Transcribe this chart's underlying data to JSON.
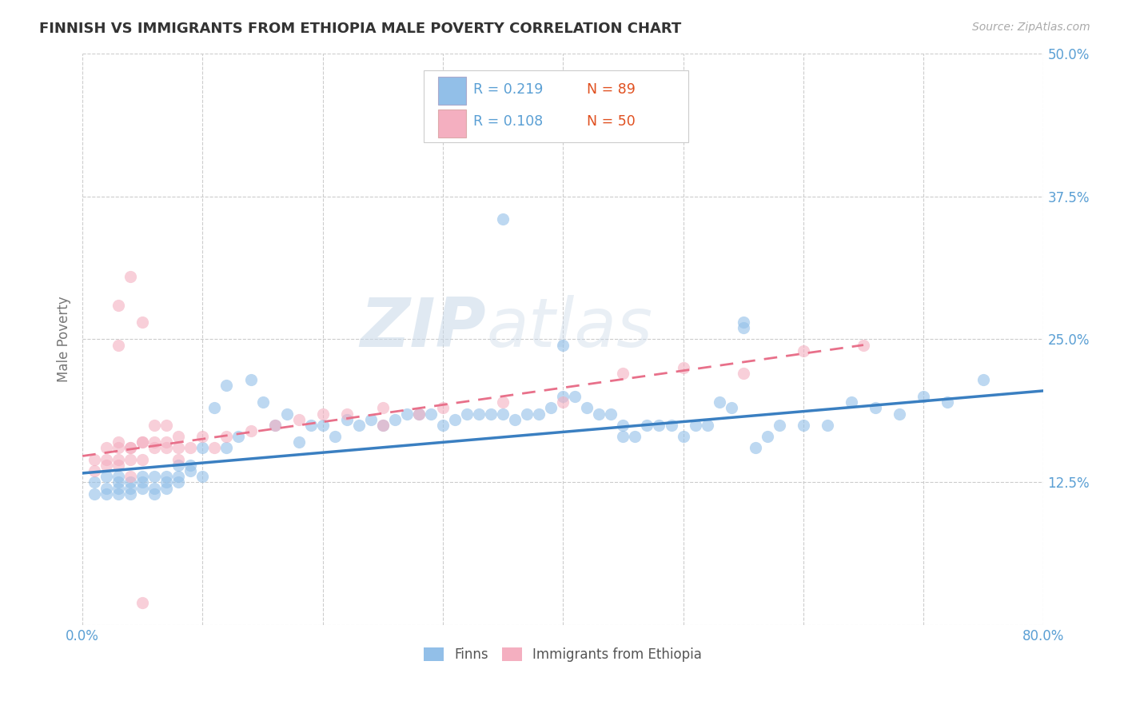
{
  "title": "FINNISH VS IMMIGRANTS FROM ETHIOPIA MALE POVERTY CORRELATION CHART",
  "source": "Source: ZipAtlas.com",
  "ylabel": "Male Poverty",
  "xlim": [
    0.0,
    0.8
  ],
  "ylim": [
    0.0,
    0.5
  ],
  "yticks": [
    0.0,
    0.125,
    0.25,
    0.375,
    0.5
  ],
  "ytick_labels": [
    "",
    "12.5%",
    "25.0%",
    "37.5%",
    "50.0%"
  ],
  "xticks": [
    0.0,
    0.1,
    0.2,
    0.3,
    0.4,
    0.5,
    0.6,
    0.7,
    0.8
  ],
  "xtick_labels": [
    "0.0%",
    "",
    "",
    "",
    "",
    "",
    "",
    "",
    "80.0%"
  ],
  "legend_r_finns": "R = 0.219",
  "legend_n_finns": "N = 89",
  "legend_r_ethiopia": "R = 0.108",
  "legend_n_ethiopia": "N = 50",
  "finns_color": "#92bfe8",
  "ethiopia_color": "#f4afc0",
  "finns_line_color": "#3a7fc1",
  "ethiopia_line_color": "#e8708a",
  "background_color": "#ffffff",
  "grid_color": "#cccccc",
  "watermark_zip": "ZIP",
  "watermark_atlas": "atlas",
  "title_color": "#333333",
  "tick_label_color": "#5a9fd4",
  "legend_text_color": "#5a9fd4",
  "legend_n_color": "#e05020",
  "finns_scatter_x": [
    0.01,
    0.01,
    0.02,
    0.02,
    0.02,
    0.03,
    0.03,
    0.03,
    0.03,
    0.04,
    0.04,
    0.04,
    0.05,
    0.05,
    0.05,
    0.06,
    0.06,
    0.06,
    0.07,
    0.07,
    0.07,
    0.08,
    0.08,
    0.08,
    0.09,
    0.09,
    0.1,
    0.1,
    0.11,
    0.12,
    0.12,
    0.13,
    0.14,
    0.15,
    0.16,
    0.17,
    0.18,
    0.19,
    0.2,
    0.21,
    0.22,
    0.23,
    0.24,
    0.25,
    0.26,
    0.27,
    0.28,
    0.29,
    0.3,
    0.31,
    0.32,
    0.33,
    0.34,
    0.35,
    0.36,
    0.37,
    0.38,
    0.39,
    0.4,
    0.41,
    0.42,
    0.43,
    0.44,
    0.45,
    0.46,
    0.47,
    0.48,
    0.49,
    0.5,
    0.51,
    0.52,
    0.53,
    0.54,
    0.55,
    0.56,
    0.57,
    0.58,
    0.6,
    0.62,
    0.64,
    0.66,
    0.68,
    0.7,
    0.72,
    0.75,
    0.35,
    0.4,
    0.45,
    0.55
  ],
  "finns_scatter_y": [
    0.125,
    0.115,
    0.13,
    0.12,
    0.115,
    0.125,
    0.115,
    0.13,
    0.12,
    0.125,
    0.115,
    0.12,
    0.125,
    0.13,
    0.12,
    0.13,
    0.12,
    0.115,
    0.13,
    0.125,
    0.12,
    0.14,
    0.13,
    0.125,
    0.135,
    0.14,
    0.155,
    0.13,
    0.19,
    0.155,
    0.21,
    0.165,
    0.215,
    0.195,
    0.175,
    0.185,
    0.16,
    0.175,
    0.175,
    0.165,
    0.18,
    0.175,
    0.18,
    0.175,
    0.18,
    0.185,
    0.185,
    0.185,
    0.175,
    0.18,
    0.185,
    0.185,
    0.185,
    0.185,
    0.18,
    0.185,
    0.185,
    0.19,
    0.2,
    0.2,
    0.19,
    0.185,
    0.185,
    0.175,
    0.165,
    0.175,
    0.175,
    0.175,
    0.165,
    0.175,
    0.175,
    0.195,
    0.19,
    0.26,
    0.155,
    0.165,
    0.175,
    0.175,
    0.175,
    0.195,
    0.19,
    0.185,
    0.2,
    0.195,
    0.215,
    0.355,
    0.245,
    0.165,
    0.265
  ],
  "ethiopia_scatter_x": [
    0.01,
    0.01,
    0.02,
    0.02,
    0.02,
    0.03,
    0.03,
    0.03,
    0.03,
    0.04,
    0.04,
    0.04,
    0.05,
    0.05,
    0.05,
    0.06,
    0.06,
    0.07,
    0.07,
    0.08,
    0.08,
    0.09,
    0.1,
    0.11,
    0.12,
    0.14,
    0.16,
    0.18,
    0.2,
    0.22,
    0.25,
    0.28,
    0.3,
    0.35,
    0.4,
    0.45,
    0.5,
    0.55,
    0.6,
    0.65,
    0.03,
    0.04,
    0.05,
    0.06,
    0.07,
    0.08,
    0.04,
    0.05,
    0.03,
    0.25
  ],
  "ethiopia_scatter_y": [
    0.135,
    0.145,
    0.14,
    0.145,
    0.155,
    0.14,
    0.145,
    0.155,
    0.16,
    0.145,
    0.155,
    0.155,
    0.16,
    0.145,
    0.16,
    0.155,
    0.16,
    0.155,
    0.16,
    0.155,
    0.165,
    0.155,
    0.165,
    0.155,
    0.165,
    0.17,
    0.175,
    0.18,
    0.185,
    0.185,
    0.19,
    0.185,
    0.19,
    0.195,
    0.195,
    0.22,
    0.225,
    0.22,
    0.24,
    0.245,
    0.245,
    0.305,
    0.265,
    0.175,
    0.175,
    0.145,
    0.13,
    0.02,
    0.28,
    0.175
  ],
  "finns_trend_x": [
    0.0,
    0.8
  ],
  "finns_trend_y": [
    0.133,
    0.205
  ],
  "ethiopia_trend_x": [
    0.0,
    0.65
  ],
  "ethiopia_trend_y": [
    0.148,
    0.245
  ]
}
